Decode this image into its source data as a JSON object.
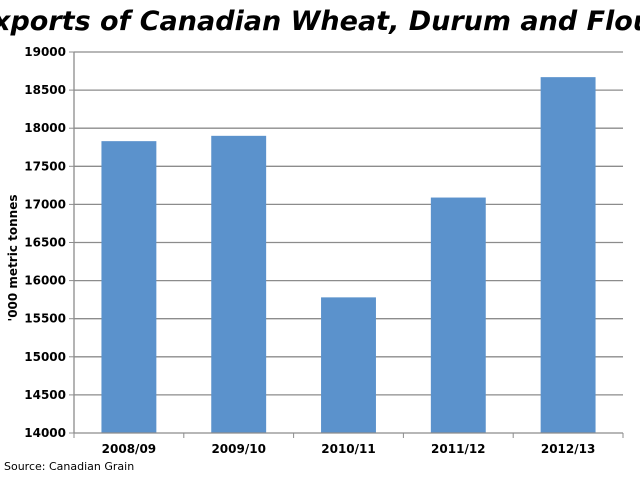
{
  "chart_data": {
    "type": "bar",
    "title": "Exports of Canadian Wheat, Durum and Flour",
    "xlabel": "",
    "ylabel": "'000 metric tonnes",
    "categories": [
      "2008/09",
      "2009/10",
      "2010/11",
      "2011/12",
      "2012/13"
    ],
    "values": [
      17830,
      17900,
      15780,
      17090,
      18670
    ],
    "ylim": [
      14000,
      19000
    ],
    "yticks": [
      14000,
      14500,
      15000,
      15500,
      16000,
      16500,
      17000,
      17500,
      18000,
      18500,
      19000
    ],
    "grid": true,
    "legend": "none",
    "bar_color": "#5b92cc",
    "grid_color": "#8c8c8c",
    "source": "Source: Canadian Grain"
  }
}
